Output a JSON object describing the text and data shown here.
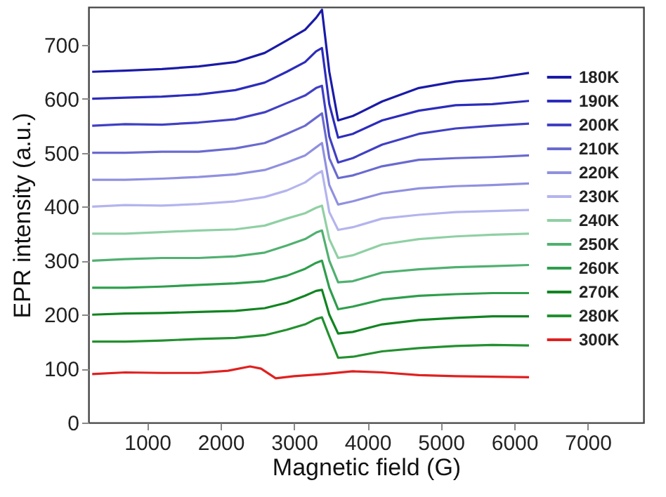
{
  "chart_data": {
    "type": "line",
    "xlabel": "Magnetic field (G)",
    "ylabel": "EPR intensity (a.u.)",
    "xlim": [
      200,
      7760
    ],
    "ylim": [
      0,
      770
    ],
    "xticks": [
      1000,
      2000,
      3000,
      4000,
      5000,
      6000,
      7000
    ],
    "yticks": [
      0,
      100,
      200,
      300,
      400,
      500,
      600,
      700
    ],
    "grid": false,
    "legend": "right",
    "x": [
      250,
      700,
      1200,
      1700,
      2200,
      2600,
      2900,
      3150,
      3300,
      3380,
      3480,
      3600,
      3800,
      4200,
      4700,
      5200,
      5700,
      6200
    ],
    "series": [
      {
        "name": "180K",
        "color": "#1a1aa8",
        "values": [
          650,
          652,
          655,
          660,
          668,
          685,
          708,
          728,
          750,
          765,
          650,
          560,
          568,
          595,
          620,
          632,
          638,
          648
        ]
      },
      {
        "name": "190K",
        "color": "#2c2cbc",
        "values": [
          600,
          602,
          604,
          608,
          616,
          630,
          650,
          668,
          688,
          694,
          590,
          528,
          535,
          560,
          578,
          588,
          590,
          596
        ]
      },
      {
        "name": "200K",
        "color": "#4040c4",
        "values": [
          550,
          553,
          552,
          556,
          562,
          575,
          592,
          606,
          620,
          624,
          530,
          482,
          490,
          515,
          535,
          545,
          550,
          554
        ]
      },
      {
        "name": "210K",
        "color": "#6a6ad0",
        "values": [
          500,
          500,
          502,
          502,
          508,
          518,
          535,
          550,
          565,
          573,
          490,
          453,
          458,
          475,
          487,
          490,
          492,
          495
        ]
      },
      {
        "name": "220K",
        "color": "#9090e0",
        "values": [
          450,
          450,
          452,
          455,
          460,
          468,
          482,
          495,
          510,
          518,
          440,
          404,
          410,
          425,
          434,
          438,
          440,
          443
        ]
      },
      {
        "name": "230K",
        "color": "#b4b4ee",
        "values": [
          400,
          403,
          402,
          405,
          410,
          418,
          430,
          445,
          460,
          466,
          390,
          357,
          362,
          378,
          385,
          390,
          392,
          394
        ]
      },
      {
        "name": "240K",
        "color": "#90d0a4",
        "values": [
          350,
          350,
          353,
          356,
          358,
          365,
          378,
          388,
          398,
          402,
          340,
          305,
          310,
          330,
          340,
          345,
          348,
          350
        ]
      },
      {
        "name": "250K",
        "color": "#50b070",
        "values": [
          300,
          303,
          305,
          305,
          308,
          315,
          328,
          340,
          352,
          356,
          300,
          260,
          262,
          278,
          284,
          288,
          290,
          292
        ]
      },
      {
        "name": "260K",
        "color": "#2e9e4c",
        "values": [
          250,
          250,
          252,
          255,
          258,
          262,
          272,
          285,
          296,
          300,
          250,
          210,
          215,
          228,
          235,
          238,
          240,
          240
        ]
      },
      {
        "name": "270K",
        "color": "#108420",
        "values": [
          200,
          202,
          203,
          205,
          207,
          212,
          222,
          235,
          244,
          246,
          200,
          165,
          168,
          182,
          190,
          194,
          197,
          197
        ]
      },
      {
        "name": "280K",
        "color": "#23902f",
        "values": [
          150,
          150,
          152,
          155,
          157,
          162,
          172,
          182,
          192,
          195,
          160,
          120,
          122,
          132,
          138,
          142,
          144,
          143
        ]
      },
      {
        "name": "300K",
        "color": "#e02020",
        "x": [
          250,
          700,
          1200,
          1700,
          2100,
          2400,
          2550,
          2750,
          3000,
          3400,
          3800,
          4200,
          4700,
          5200,
          5700,
          6200
        ],
        "values": [
          90,
          93,
          92,
          92,
          96,
          104,
          100,
          82,
          86,
          90,
          95,
          93,
          88,
          86,
          85,
          84
        ]
      }
    ]
  }
}
